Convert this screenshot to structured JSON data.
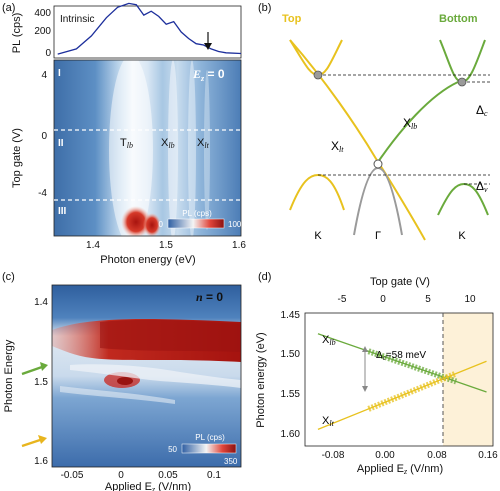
{
  "panels": {
    "a": {
      "letter": "(a)",
      "pl_trace_label": "Intrinsic",
      "pl_ylabel": "PL (cps)",
      "pl_yticks": [
        "400",
        "200",
        "0"
      ],
      "eq_symbol": "E",
      "eq_sub": "z",
      "eq_rest": " = 0",
      "regions": [
        "I",
        "II",
        "III"
      ],
      "peak_labels": [
        {
          "main": "T",
          "sub": "lb"
        },
        {
          "main": "X",
          "sub": "lb"
        },
        {
          "main": "X",
          "sub": "lt"
        }
      ],
      "ylabel": "Top gate (V)",
      "yticks": [
        "4",
        "0",
        "-4"
      ],
      "xlabel": "Photon energy (eV)",
      "xticks": [
        "1.4",
        "1.5",
        "1.6"
      ],
      "colorbar": {
        "label": "PL (cps)",
        "min": "0",
        "max": "1000"
      }
    },
    "b": {
      "letter": "(b)",
      "top_label": "Top",
      "bottom_label": "Bottom",
      "top_color": "#e8c21e",
      "bottom_color": "#6aaa3c",
      "gamma_color": "#9a9a9a",
      "x_lt": {
        "main": "X",
        "sub": "lt"
      },
      "x_lb": {
        "main": "X",
        "sub": "lb"
      },
      "delta_c": {
        "main": "Δ",
        "sub": "c"
      },
      "delta_v": {
        "main": "Δ",
        "sub": "v"
      },
      "valleys": [
        "K",
        "Γ",
        "K"
      ]
    },
    "c": {
      "letter": "(c)",
      "eq_symbol": "n",
      "eq_rest": " = 0",
      "ylabel": "Photon Energy",
      "yticks": [
        "1.4",
        "1.5",
        "1.6"
      ],
      "xlabel_main": "Applied E",
      "xlabel_sub": "z",
      "xlabel_units": " (V/nm)",
      "xticks": [
        "-0.05",
        "0",
        "0.05",
        "0.1"
      ],
      "colorbar": {
        "label": "PL (cps)",
        "min": "50",
        "max": "350"
      }
    },
    "d": {
      "letter": "(d)",
      "top_axis_label": "Top gate (V)",
      "top_ticks": [
        "-5",
        "0",
        "5",
        "10"
      ],
      "ylabel": "Photon energy (eV)",
      "yticks": [
        "1.45",
        "1.50",
        "1.55",
        "1.60"
      ],
      "xlabel_main": "Applied E",
      "xlabel_sub": "z",
      "xlabel_units": " (V/nm)",
      "xticks": [
        "-0.08",
        "0.00",
        "0.08",
        "0.16"
      ],
      "x_lb": {
        "main": "X",
        "sub": "lb"
      },
      "x_lt": {
        "main": "X",
        "sub": "lt"
      },
      "delta_label": {
        "main": "Δ",
        "sub": "c",
        "rest": "=58 meV"
      }
    }
  },
  "chart_data": [
    {
      "type": "line",
      "panel": "a-top",
      "xlabel": "Photon energy (eV)",
      "ylabel": "PL (cps)",
      "xlim": [
        1.35,
        1.6
      ],
      "ylim": [
        0,
        400
      ],
      "x": [
        1.355,
        1.38,
        1.4,
        1.42,
        1.435,
        1.45,
        1.46,
        1.47,
        1.48,
        1.49,
        1.5,
        1.51,
        1.52,
        1.53,
        1.54,
        1.55,
        1.56,
        1.57,
        1.58,
        1.6
      ],
      "y": [
        30,
        70,
        170,
        310,
        390,
        420,
        410,
        330,
        360,
        320,
        260,
        280,
        200,
        150,
        110,
        100,
        70,
        50,
        40,
        35
      ]
    },
    {
      "type": "line",
      "panel": "d",
      "xlabel": "Applied Ez (V/nm)",
      "ylabel": "Photon energy (eV)",
      "xlim": [
        -0.12,
        0.17
      ],
      "ylim": [
        1.61,
        1.45
      ],
      "series": [
        {
          "name": "Xlb",
          "x": [
            -0.1,
            0.16
          ],
          "y": [
            1.475,
            1.545
          ]
        },
        {
          "name": "Xlt",
          "x": [
            -0.1,
            0.16
          ],
          "y": [
            1.59,
            1.508
          ]
        }
      ],
      "crossing_x": 0.09
    }
  ]
}
